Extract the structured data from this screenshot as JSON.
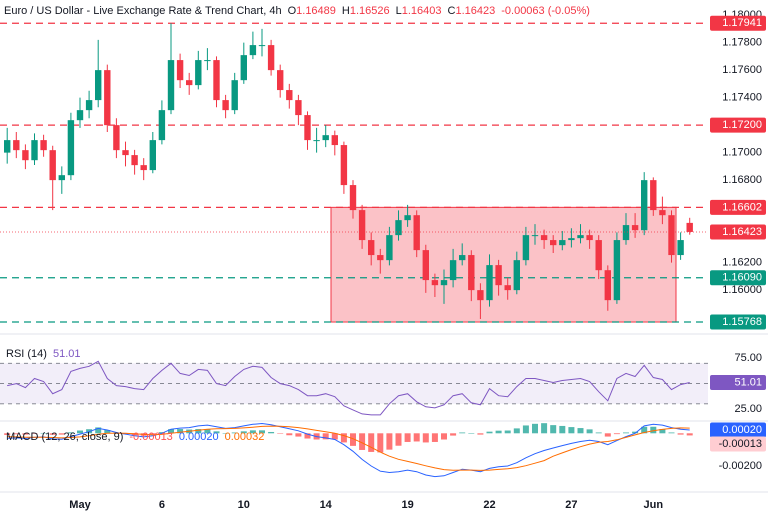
{
  "chart_data": [
    {
      "type": "candlestick",
      "title": "Euro / US Dollar - Live Exchange Rate & Trend Chart, 4h",
      "header_labels": [
        "O",
        "H",
        "L",
        "C"
      ],
      "change": "-0.00063 (-0.05%)",
      "categories": [
        null,
        null,
        null,
        null,
        null,
        null,
        null,
        null,
        "May",
        null,
        null,
        null,
        null,
        null,
        null,
        null,
        null,
        "6",
        null,
        null,
        null,
        null,
        null,
        null,
        null,
        null,
        "10",
        null,
        null,
        null,
        null,
        null,
        null,
        null,
        null,
        "14",
        null,
        null,
        null,
        null,
        null,
        null,
        null,
        null,
        "19",
        null,
        null,
        null,
        null,
        null,
        null,
        null,
        null,
        "22",
        null,
        null,
        null,
        null,
        null,
        null,
        null,
        null,
        "27",
        null,
        null,
        null,
        null,
        null,
        null,
        null,
        null,
        "Jun",
        null,
        null,
        null,
        null
      ],
      "open": [
        1.17,
        1.17091,
        1.17018,
        1.16945,
        1.17091,
        1.17018,
        1.168,
        1.16836,
        1.17236,
        1.17309,
        1.17382,
        1.176,
        1.172,
        1.17018,
        1.16982,
        1.16909,
        1.16873,
        1.17091,
        1.17309,
        1.17673,
        1.17527,
        1.17491,
        1.17673,
        1.17673,
        1.17382,
        1.17309,
        1.17527,
        1.17709,
        1.17782,
        1.17782,
        1.176,
        1.17455,
        1.17382,
        1.17273,
        1.17091,
        1.17091,
        1.17127,
        1.17055,
        1.16764,
        1.16582,
        1.16364,
        1.16255,
        1.16218,
        1.164,
        1.16509,
        1.16545,
        1.16291,
        1.16073,
        1.16036,
        1.16073,
        1.16218,
        1.16255,
        1.16,
        1.15927,
        1.16182,
        1.16036,
        1.16,
        1.16218,
        1.164,
        1.164,
        1.16364,
        1.16327,
        1.16364,
        1.16378,
        1.164,
        1.16364,
        1.16145,
        1.15927,
        1.16364,
        1.16473,
        1.16436,
        1.168,
        1.16582,
        1.16545,
        1.16255,
        1.16489
      ],
      "high": [
        1.1718,
        1.1715,
        1.1706,
        1.1714,
        1.1713,
        1.1705,
        1.169,
        1.1729,
        1.174,
        1.1745,
        1.1782,
        1.1764,
        1.1725,
        1.1708,
        1.1702,
        1.1696,
        1.1715,
        1.1738,
        1.17941,
        1.1772,
        1.1758,
        1.1774,
        1.1776,
        1.177,
        1.1742,
        1.1758,
        1.178,
        1.1788,
        1.179,
        1.1782,
        1.1764,
        1.175,
        1.1742,
        1.173,
        1.1718,
        1.172,
        1.1716,
        1.1708,
        1.168,
        1.1662,
        1.1642,
        1.163,
        1.1646,
        1.1658,
        1.1662,
        1.1658,
        1.1633,
        1.1612,
        1.1615,
        1.163,
        1.1634,
        1.1629,
        1.1605,
        1.1626,
        1.1622,
        1.1609,
        1.1628,
        1.1646,
        1.1648,
        1.1644,
        1.164,
        1.1643,
        1.1645,
        1.1648,
        1.1644,
        1.164,
        1.1618,
        1.1642,
        1.1656,
        1.1656,
        1.16858,
        1.1682,
        1.1668,
        1.1658,
        1.1642,
        1.16526
      ],
      "low": [
        1.1692,
        1.1696,
        1.1688,
        1.1691,
        1.1697,
        1.16582,
        1.167,
        1.168,
        1.1718,
        1.1725,
        1.1733,
        1.1715,
        1.1696,
        1.169,
        1.1684,
        1.168,
        1.1685,
        1.1706,
        1.1728,
        1.1747,
        1.1742,
        1.1746,
        1.176,
        1.1733,
        1.1725,
        1.1728,
        1.175,
        1.1768,
        1.177,
        1.1756,
        1.174,
        1.1732,
        1.172,
        1.1702,
        1.17,
        1.1704,
        1.1698,
        1.167,
        1.1652,
        1.163,
        1.1618,
        1.1612,
        1.1618,
        1.1636,
        1.1646,
        1.1624,
        1.1598,
        1.1595,
        1.159,
        1.1602,
        1.1618,
        1.1592,
        1.1579,
        1.1588,
        1.1596,
        1.1593,
        1.1597,
        1.1618,
        1.1633,
        1.163,
        1.1627,
        1.1629,
        1.1631,
        1.1634,
        1.163,
        1.1608,
        1.1585,
        1.159,
        1.1633,
        1.1638,
        1.164,
        1.1654,
        1.1648,
        1.162,
        1.1622,
        1.16403
      ],
      "close": [
        1.17091,
        1.17018,
        1.16945,
        1.17091,
        1.17018,
        1.168,
        1.16836,
        1.17236,
        1.17309,
        1.17382,
        1.176,
        1.172,
        1.17018,
        1.16982,
        1.16909,
        1.16873,
        1.17091,
        1.17309,
        1.17673,
        1.17527,
        1.17491,
        1.17673,
        1.17673,
        1.17382,
        1.17309,
        1.17527,
        1.17709,
        1.17782,
        1.17782,
        1.176,
        1.17455,
        1.17382,
        1.17273,
        1.17091,
        1.17091,
        1.17127,
        1.17055,
        1.16764,
        1.16582,
        1.16364,
        1.16255,
        1.16218,
        1.164,
        1.16509,
        1.16545,
        1.16291,
        1.16073,
        1.16036,
        1.16073,
        1.16218,
        1.16255,
        1.16,
        1.15927,
        1.16182,
        1.16036,
        1.16,
        1.16218,
        1.164,
        1.164,
        1.16364,
        1.16327,
        1.16364,
        1.16378,
        1.164,
        1.16364,
        1.16145,
        1.15927,
        1.16364,
        1.16473,
        1.16436,
        1.168,
        1.16582,
        1.16545,
        1.16255,
        1.16364,
        1.16423
      ],
      "up_color": "#089981",
      "down_color": "#f23645",
      "ylim": [
        1.1571,
        1.1811
      ],
      "yticks": [
        {
          "value": 1.18,
          "label": "1.18000"
        },
        {
          "value": 1.178,
          "label": "1.17800"
        },
        {
          "value": 1.176,
          "label": "1.17600"
        },
        {
          "value": 1.174,
          "label": "1.17400"
        },
        {
          "value": 1.17,
          "label": "1.17000"
        },
        {
          "value": 1.168,
          "label": "1.16800"
        },
        {
          "value": 1.162,
          "label": "1.16200"
        },
        {
          "value": 1.16,
          "label": "1.16000"
        }
      ],
      "levels": [
        {
          "value": 1.17941,
          "label": "1.17941",
          "color": "#f23645"
        },
        {
          "value": 1.172,
          "label": "1.17200",
          "color": "#f23645"
        },
        {
          "value": 1.16602,
          "label": "1.16602",
          "color": "#f23645"
        },
        {
          "value": 1.1609,
          "label": "1.16090",
          "color": "#089981"
        },
        {
          "value": 1.15768,
          "label": "1.15768",
          "color": "#089981"
        }
      ]
    },
    {
      "type": "line",
      "title": "RSI (14)",
      "color": "#7e57c2",
      "values": [
        48,
        50,
        46,
        55,
        52,
        40,
        44,
        62,
        65,
        67,
        72,
        55,
        48,
        47,
        45,
        44,
        55,
        63,
        70,
        60,
        58,
        64,
        63,
        50,
        48,
        57,
        64,
        67,
        66,
        56,
        50,
        48,
        44,
        38,
        38,
        40,
        37,
        28,
        24,
        20,
        19,
        19,
        30,
        38,
        40,
        32,
        27,
        26,
        29,
        38,
        40,
        31,
        29,
        45,
        38,
        37,
        47,
        55,
        55,
        53,
        51,
        53,
        54,
        55,
        52,
        42,
        33,
        55,
        60,
        57,
        68,
        56,
        54,
        44,
        49,
        51.01
      ],
      "ylim": [
        14,
        95
      ],
      "yticks": [
        {
          "value": 75,
          "label": "75.00"
        },
        {
          "value": 25,
          "label": "25.00"
        }
      ],
      "levels": [
        70,
        50,
        30
      ]
    },
    {
      "type": "macd",
      "title": "MACD (12, 26, close, 9)",
      "header": [
        {
          "value": -0.00013,
          "label": "-0.00013"
        },
        {
          "value": 0.0002,
          "label": "0.00020"
        },
        {
          "value": 0.00032,
          "label": "0.00032"
        }
      ],
      "macd": {
        "color": "#2962ff",
        "values": [
          -0.0003,
          -0.00028,
          -0.00032,
          -0.00025,
          -0.00022,
          -0.00035,
          -0.00036,
          -0.0002,
          -5e-05,
          0.0001,
          0.0003,
          0.0002,
          5e-05,
          -5e-05,
          -0.00015,
          -0.00022,
          -0.00015,
          0,
          0.00025,
          0.00032,
          0.00035,
          0.00045,
          0.0005,
          0.0004,
          0.0003,
          0.00035,
          0.00045,
          0.00055,
          0.0006,
          0.00052,
          0.0004,
          0.00028,
          0.00015,
          -5e-05,
          -0.0002,
          -0.00028,
          -0.00038,
          -0.0007,
          -0.0011,
          -0.0016,
          -0.002,
          -0.00232,
          -0.0024,
          -0.00235,
          -0.00225,
          -0.00235,
          -0.00255,
          -0.00265,
          -0.0026,
          -0.0024,
          -0.0022,
          -0.00225,
          -0.00235,
          -0.00215,
          -0.00205,
          -0.002,
          -0.0018,
          -0.0015,
          -0.00125,
          -0.00105,
          -0.0009,
          -0.00075,
          -0.00062,
          -0.0005,
          -0.00042,
          -0.0005,
          -0.0007,
          -0.00045,
          -0.0002,
          0,
          0.00045,
          0.00055,
          0.0005,
          0.00035,
          0.00025,
          0.0002
        ]
      },
      "signal": {
        "color": "#ff6d00",
        "values": [
          -0.0002,
          -0.00022,
          -0.00024,
          -0.00024,
          -0.00024,
          -0.00026,
          -0.00028,
          -0.00026,
          -0.00022,
          -0.00015,
          -6e-05,
          0,
          1e-05,
          0,
          -3e-05,
          -7e-05,
          -9e-05,
          -7e-05,
          0,
          6e-05,
          0.00012,
          0.00019,
          0.00025,
          0.00028,
          0.00029,
          0.0003,
          0.00033,
          0.00037,
          0.00042,
          0.00044,
          0.00043,
          0.0004,
          0.00035,
          0.00027,
          0.00018,
          9e-05,
          0,
          -0.00014,
          -0.00033,
          -0.00058,
          -0.00086,
          -0.00115,
          -0.0014,
          -0.00159,
          -0.00172,
          -0.00185,
          -0.00199,
          -0.00212,
          -0.00222,
          -0.00226,
          -0.00225,
          -0.00225,
          -0.00227,
          -0.00225,
          -0.00221,
          -0.00217,
          -0.0021,
          -0.00198,
          -0.00183,
          -0.00167,
          -0.0014,
          -0.0012,
          -0.001,
          -0.00082,
          -0.00066,
          -0.00055,
          -0.0005,
          -0.0004,
          -0.00025,
          -0.0001,
          5e-05,
          0.00015,
          0.00024,
          0.0003,
          0.00033,
          0.00032
        ]
      },
      "histogram": {
        "up_color": "#26a69a",
        "down_color": "#ff5252",
        "values": [
          -0.0001,
          -6e-05,
          -8e-05,
          -1e-05,
          2e-05,
          -9e-05,
          -8e-05,
          6e-05,
          0.00017,
          0.00025,
          0.00036,
          0.0002,
          4e-05,
          -5e-05,
          -0.00012,
          -0.00015,
          -6e-05,
          7e-05,
          0.00025,
          0.00026,
          0.00023,
          0.00026,
          0.00025,
          0.00012,
          1e-05,
          5e-05,
          0.00012,
          0.00018,
          0.00018,
          8e-05,
          -3e-05,
          -0.00012,
          -0.0002,
          -0.00032,
          -0.00038,
          -0.00037,
          -0.00038,
          -0.00056,
          -0.00077,
          -0.00102,
          -0.00114,
          -0.00117,
          -0.001,
          -0.00076,
          -0.00053,
          -0.0005,
          -0.00056,
          -0.00053,
          -0.00038,
          -0.00014,
          5e-05,
          0,
          -8e-05,
          0.0001,
          0.00016,
          0.00017,
          0.0003,
          0.00048,
          0.00058,
          0.00062,
          0.0005,
          0.00045,
          0.00038,
          0.00032,
          0.00024,
          5e-05,
          -0.0002,
          -5e-05,
          5e-05,
          0.0001,
          0.0004,
          0.0004,
          0.00026,
          5e-05,
          -8e-05,
          -0.00013
        ]
      },
      "ylim": [
        -0.00347,
        0.00063
      ],
      "yticks": [
        {
          "value": -0.002,
          "label": "-0.00200"
        }
      ]
    }
  ]
}
